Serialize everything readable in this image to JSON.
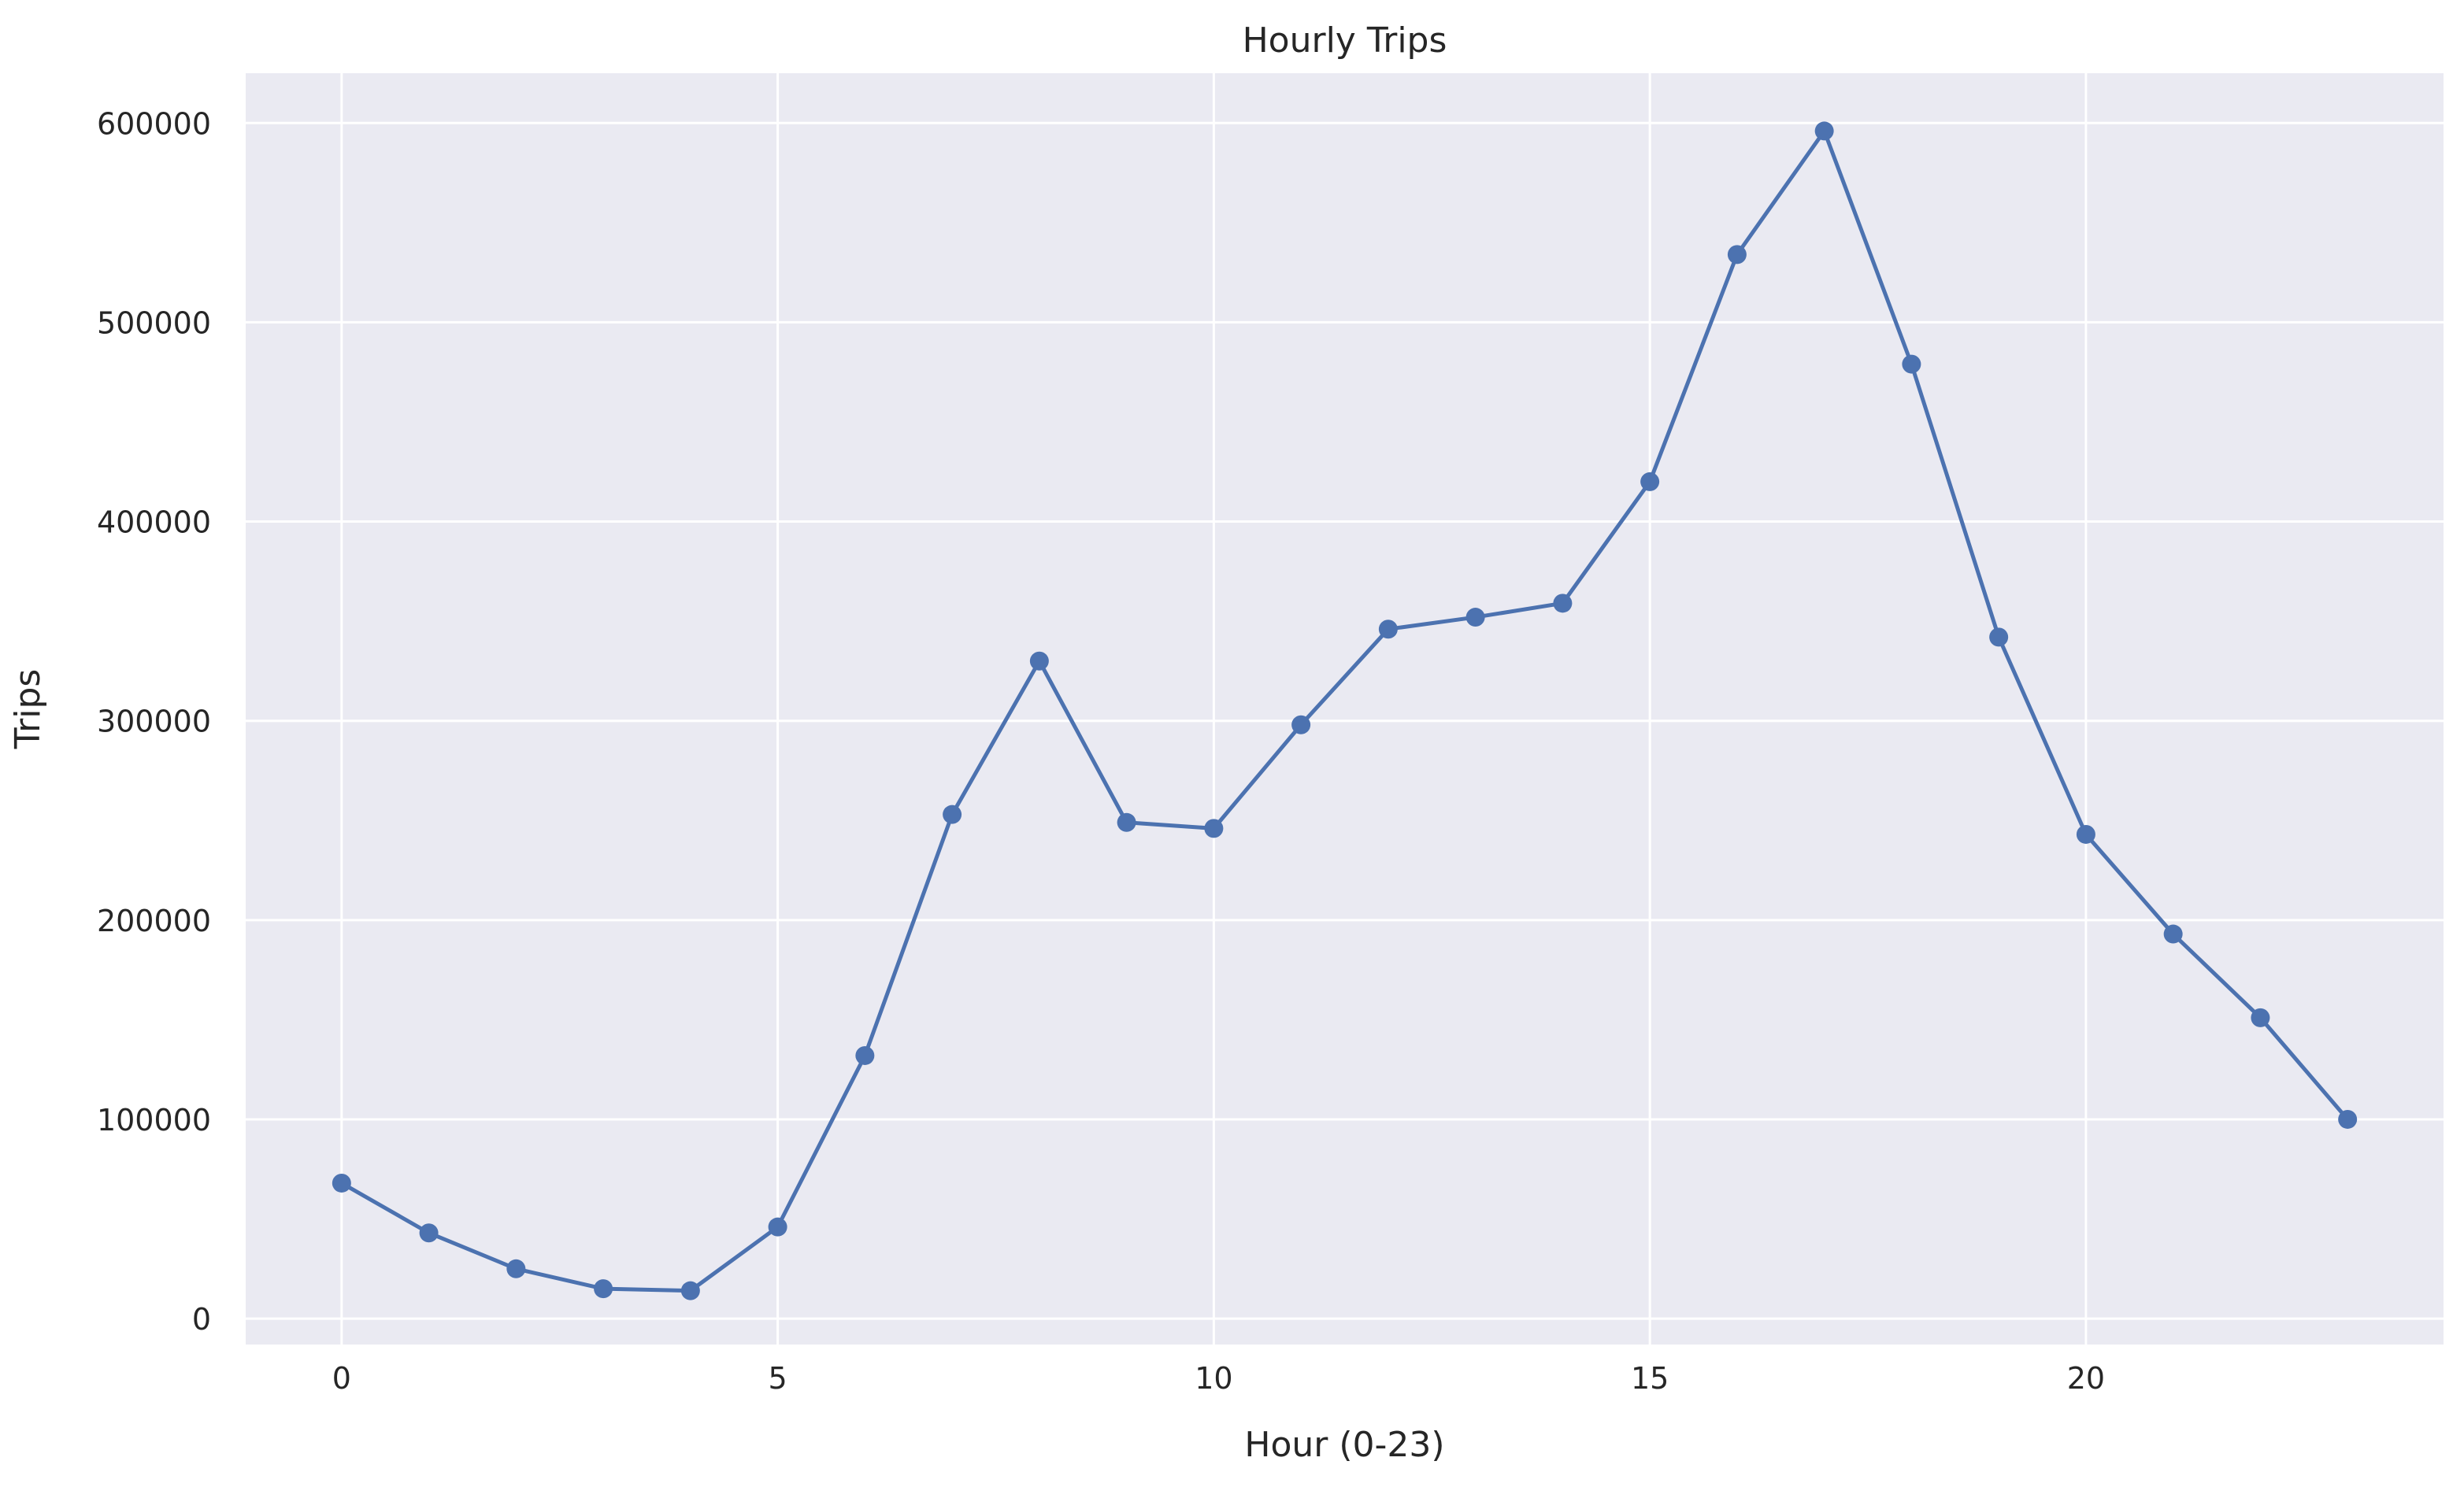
{
  "chart_data": {
    "type": "line",
    "title": "Hourly Trips",
    "xlabel": "Hour (0-23)",
    "ylabel": "Trips",
    "x": [
      0,
      1,
      2,
      3,
      4,
      5,
      6,
      7,
      8,
      9,
      10,
      11,
      12,
      13,
      14,
      15,
      16,
      17,
      18,
      19,
      20,
      21,
      22,
      23
    ],
    "series": [
      {
        "values": [
          68000,
          43000,
          25000,
          15000,
          14000,
          46000,
          132000,
          253000,
          330000,
          249000,
          246000,
          298000,
          346000,
          352000,
          359000,
          420000,
          534000,
          596000,
          479000,
          342000,
          243000,
          193000,
          151000,
          100000
        ]
      }
    ],
    "xlim": [
      -1.1,
      24.1
    ],
    "ylim": [
      -13000,
      625000
    ],
    "xticks": [
      0,
      5,
      10,
      15,
      20
    ],
    "xtick_labels": [
      "0",
      "5",
      "10",
      "15",
      "20"
    ],
    "yticks": [
      0,
      100000,
      200000,
      300000,
      400000,
      500000,
      600000
    ],
    "ytick_labels": [
      "0",
      "100000",
      "200000",
      "300000",
      "400000",
      "500000",
      "600000"
    ],
    "grid": true,
    "legend": "none",
    "colors": {
      "background": "#eaeaf2",
      "grid": "#ffffff",
      "series": "#4c72b0",
      "text": "#262626"
    }
  }
}
